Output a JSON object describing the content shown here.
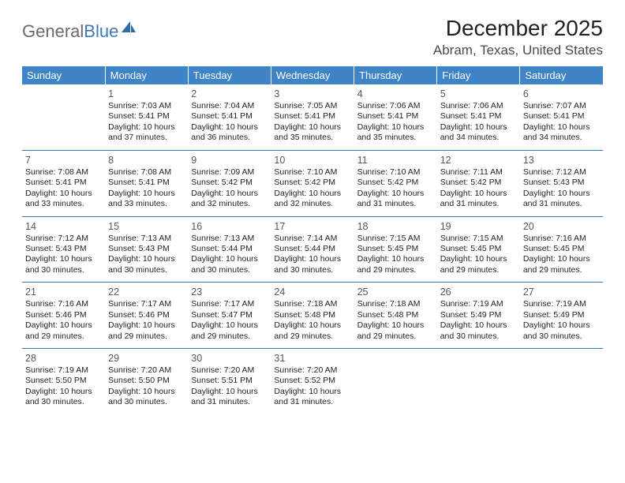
{
  "brand": {
    "part1": "General",
    "part2": "Blue"
  },
  "title": "December 2025",
  "location": "Abram, Texas, United States",
  "header_bg": "#3e84c6",
  "header_fg": "#ffffff",
  "rule_color": "#3e7ab8",
  "days": [
    "Sunday",
    "Monday",
    "Tuesday",
    "Wednesday",
    "Thursday",
    "Friday",
    "Saturday"
  ],
  "weeks": [
    [
      null,
      {
        "n": "1",
        "sr": "7:03 AM",
        "ss": "5:41 PM",
        "dl": "10 hours and 37 minutes."
      },
      {
        "n": "2",
        "sr": "7:04 AM",
        "ss": "5:41 PM",
        "dl": "10 hours and 36 minutes."
      },
      {
        "n": "3",
        "sr": "7:05 AM",
        "ss": "5:41 PM",
        "dl": "10 hours and 35 minutes."
      },
      {
        "n": "4",
        "sr": "7:06 AM",
        "ss": "5:41 PM",
        "dl": "10 hours and 35 minutes."
      },
      {
        "n": "5",
        "sr": "7:06 AM",
        "ss": "5:41 PM",
        "dl": "10 hours and 34 minutes."
      },
      {
        "n": "6",
        "sr": "7:07 AM",
        "ss": "5:41 PM",
        "dl": "10 hours and 34 minutes."
      }
    ],
    [
      {
        "n": "7",
        "sr": "7:08 AM",
        "ss": "5:41 PM",
        "dl": "10 hours and 33 minutes."
      },
      {
        "n": "8",
        "sr": "7:08 AM",
        "ss": "5:41 PM",
        "dl": "10 hours and 33 minutes."
      },
      {
        "n": "9",
        "sr": "7:09 AM",
        "ss": "5:42 PM",
        "dl": "10 hours and 32 minutes."
      },
      {
        "n": "10",
        "sr": "7:10 AM",
        "ss": "5:42 PM",
        "dl": "10 hours and 32 minutes."
      },
      {
        "n": "11",
        "sr": "7:10 AM",
        "ss": "5:42 PM",
        "dl": "10 hours and 31 minutes."
      },
      {
        "n": "12",
        "sr": "7:11 AM",
        "ss": "5:42 PM",
        "dl": "10 hours and 31 minutes."
      },
      {
        "n": "13",
        "sr": "7:12 AM",
        "ss": "5:43 PM",
        "dl": "10 hours and 31 minutes."
      }
    ],
    [
      {
        "n": "14",
        "sr": "7:12 AM",
        "ss": "5:43 PM",
        "dl": "10 hours and 30 minutes."
      },
      {
        "n": "15",
        "sr": "7:13 AM",
        "ss": "5:43 PM",
        "dl": "10 hours and 30 minutes."
      },
      {
        "n": "16",
        "sr": "7:13 AM",
        "ss": "5:44 PM",
        "dl": "10 hours and 30 minutes."
      },
      {
        "n": "17",
        "sr": "7:14 AM",
        "ss": "5:44 PM",
        "dl": "10 hours and 30 minutes."
      },
      {
        "n": "18",
        "sr": "7:15 AM",
        "ss": "5:45 PM",
        "dl": "10 hours and 29 minutes."
      },
      {
        "n": "19",
        "sr": "7:15 AM",
        "ss": "5:45 PM",
        "dl": "10 hours and 29 minutes."
      },
      {
        "n": "20",
        "sr": "7:16 AM",
        "ss": "5:45 PM",
        "dl": "10 hours and 29 minutes."
      }
    ],
    [
      {
        "n": "21",
        "sr": "7:16 AM",
        "ss": "5:46 PM",
        "dl": "10 hours and 29 minutes."
      },
      {
        "n": "22",
        "sr": "7:17 AM",
        "ss": "5:46 PM",
        "dl": "10 hours and 29 minutes."
      },
      {
        "n": "23",
        "sr": "7:17 AM",
        "ss": "5:47 PM",
        "dl": "10 hours and 29 minutes."
      },
      {
        "n": "24",
        "sr": "7:18 AM",
        "ss": "5:48 PM",
        "dl": "10 hours and 29 minutes."
      },
      {
        "n": "25",
        "sr": "7:18 AM",
        "ss": "5:48 PM",
        "dl": "10 hours and 29 minutes."
      },
      {
        "n": "26",
        "sr": "7:19 AM",
        "ss": "5:49 PM",
        "dl": "10 hours and 30 minutes."
      },
      {
        "n": "27",
        "sr": "7:19 AM",
        "ss": "5:49 PM",
        "dl": "10 hours and 30 minutes."
      }
    ],
    [
      {
        "n": "28",
        "sr": "7:19 AM",
        "ss": "5:50 PM",
        "dl": "10 hours and 30 minutes."
      },
      {
        "n": "29",
        "sr": "7:20 AM",
        "ss": "5:50 PM",
        "dl": "10 hours and 30 minutes."
      },
      {
        "n": "30",
        "sr": "7:20 AM",
        "ss": "5:51 PM",
        "dl": "10 hours and 31 minutes."
      },
      {
        "n": "31",
        "sr": "7:20 AM",
        "ss": "5:52 PM",
        "dl": "10 hours and 31 minutes."
      },
      null,
      null,
      null
    ]
  ],
  "labels": {
    "sunrise_prefix": "Sunrise: ",
    "sunset_prefix": "Sunset: ",
    "daylight_prefix": "Daylight: "
  }
}
